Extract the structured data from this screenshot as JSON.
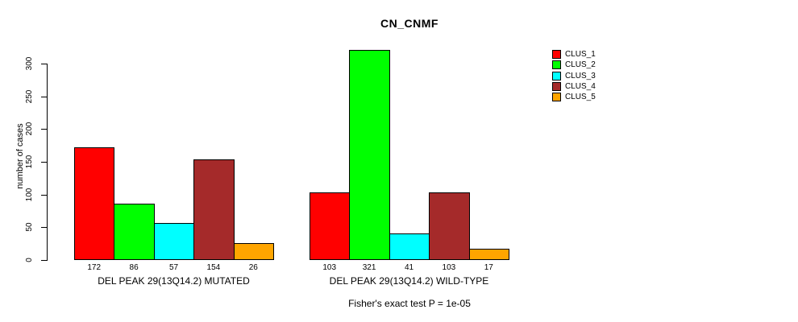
{
  "title": "CN_CNMF",
  "chart_data": {
    "type": "bar",
    "title": "CN_CNMF",
    "ylabel": "number of cases",
    "xlabel": "",
    "ylim": [
      0,
      300
    ],
    "yticks": [
      0,
      50,
      100,
      150,
      200,
      250,
      300
    ],
    "grid": false,
    "legend_position": "right",
    "series": [
      {
        "name": "CLUS_1",
        "color": "#FF0000"
      },
      {
        "name": "CLUS_2",
        "color": "#00FF00"
      },
      {
        "name": "CLUS_3",
        "color": "#00FFFF"
      },
      {
        "name": "CLUS_4",
        "color": "#A52A2A"
      },
      {
        "name": "CLUS_5",
        "color": "#FFA500"
      }
    ],
    "groups": [
      {
        "label": "DEL PEAK 29(13Q14.2) MUTATED",
        "values": [
          172,
          86,
          57,
          154,
          26
        ]
      },
      {
        "label": "DEL PEAK 29(13Q14.2) WILD-TYPE",
        "values": [
          103,
          321,
          41,
          103,
          17
        ]
      }
    ],
    "footer": "Fisher's exact test P = 1e-05"
  }
}
